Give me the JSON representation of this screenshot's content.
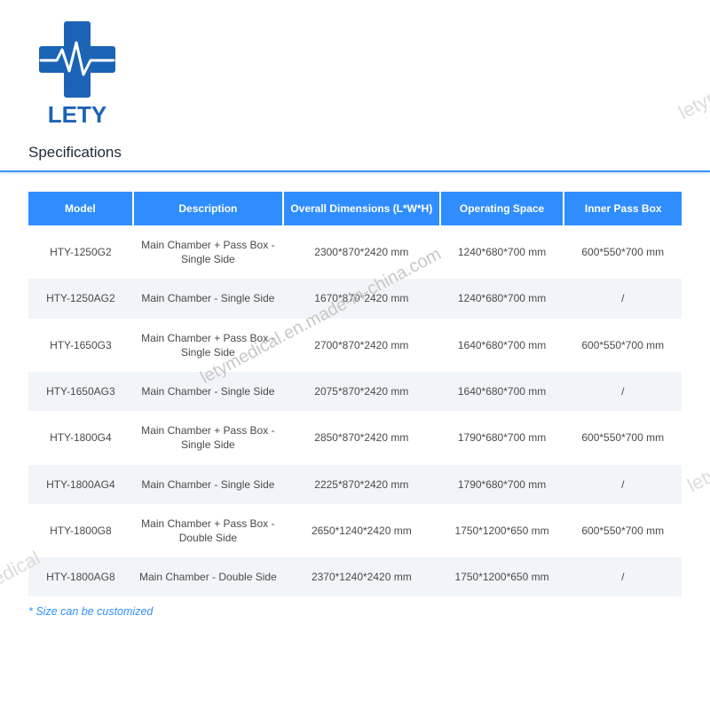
{
  "brand": {
    "name": "LETY",
    "logo_primary": "#1b63b5",
    "logo_accent": "#48b3ff"
  },
  "section_title": "Specifications",
  "footnote": "* Size can be customized",
  "watermark_center": "letymedical.en.made-in-china.com",
  "watermark_side": "letymedical",
  "colors": {
    "header_bg": "#2f8dff",
    "header_text": "#ffffff",
    "row_alt_bg": "#f1f5f9",
    "row_bg": "#ffffff",
    "cell_text": "#4a4a4a",
    "title_underline": "#3b97ff",
    "footnote_color": "#2f8dff"
  },
  "table": {
    "columns": [
      "Model",
      "Description",
      "Overall Dimensions (L*W*H)",
      "Operating Space",
      "Inner Pass Box"
    ],
    "col_widths_pct": [
      16,
      23,
      24,
      19,
      18
    ],
    "rows": [
      [
        "HTY-1250G2",
        "Main Chamber + Pass Box - Single Side",
        "2300*870*2420 mm",
        "1240*680*700 mm",
        "600*550*700 mm"
      ],
      [
        "HTY-1250AG2",
        "Main Chamber - Single Side",
        "1670*870*2420 mm",
        "1240*680*700 mm",
        "/"
      ],
      [
        "HTY-1650G3",
        "Main Chamber + Pass Box - Single Side",
        "2700*870*2420 mm",
        "1640*680*700 mm",
        "600*550*700 mm"
      ],
      [
        "HTY-1650AG3",
        "Main Chamber - Single Side",
        "2075*870*2420 mm",
        "1640*680*700 mm",
        "/"
      ],
      [
        "HTY-1800G4",
        "Main Chamber + Pass Box - Single Side",
        "2850*870*2420 mm",
        "1790*680*700 mm",
        "600*550*700 mm"
      ],
      [
        "HTY-1800AG4",
        "Main Chamber - Single Side",
        "2225*870*2420 mm",
        "1790*680*700 mm",
        "/"
      ],
      [
        "HTY-1800G8",
        "Main Chamber + Pass Box - Double Side",
        "2650*1240*2420 mm",
        "1750*1200*650 mm",
        "600*550*700 mm"
      ],
      [
        "HTY-1800AG8",
        "Main Chamber - Double Side",
        "2370*1240*2420 mm",
        "1750*1200*650 mm",
        "/"
      ]
    ]
  }
}
